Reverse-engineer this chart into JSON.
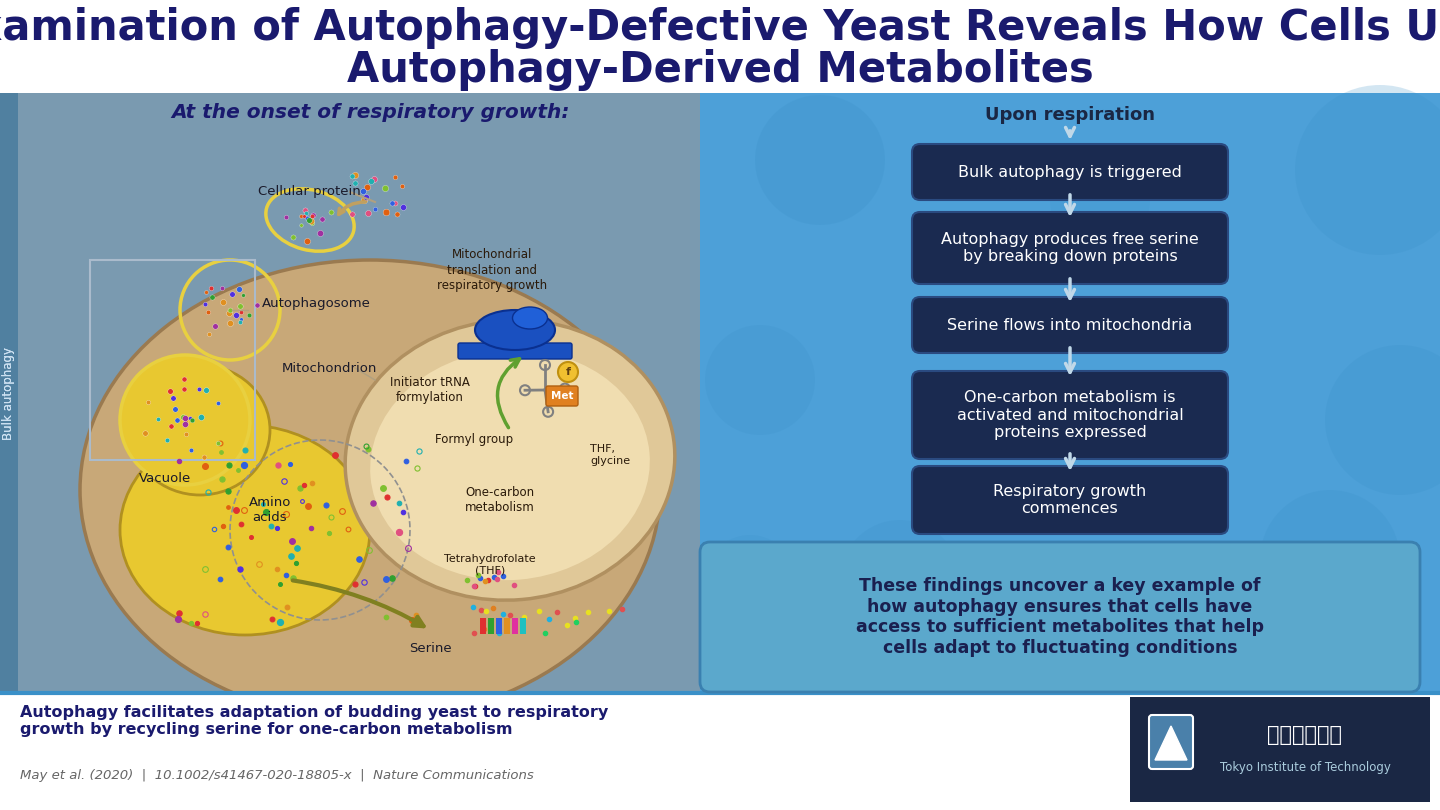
{
  "title_line1": "Examination of Autophagy-Defective Yeast Reveals How Cells Use",
  "title_line2": "Autophagy-Derived Metabolites",
  "title_color": "#1a1a6e",
  "title_fontsize": 30,
  "bg_color": "#ffffff",
  "left_panel_bg": "#7a9ab0",
  "left_panel_label": "At the onset of respiratory growth:",
  "left_panel_label_color": "#1a1a6e",
  "right_panel_bg": "#4da0d8",
  "right_panel_label": "Upon respiration",
  "flow_boxes": [
    "Bulk autophagy is triggered",
    "Autophagy produces free serine\nby breaking down proteins",
    "Serine flows into mitochondria",
    "One-carbon metabolism is\nactivated and mitochondrial\nproteins expressed",
    "Respiratory growth\ncommences"
  ],
  "flow_box_color": "#1a2a50",
  "flow_box_text_color": "#ffffff",
  "flow_arrow_color": "#c0d8e8",
  "summary_box_bg": "#5ba8cc",
  "summary_text": "These findings uncover a key example of\nhow autophagy ensures that cells have\naccess to sufficient metabolites that help\ncells adapt to fluctuating conditions",
  "summary_text_color": "#1a2050",
  "footer_bold": "Autophagy facilitates adaptation of budding yeast to respiratory\ngrowth by recycling serine for one-carbon metabolism",
  "footer_citation": "May et al. (2020)  |  10.1002/s41467-020-18805-x  |  Nature Communications",
  "footer_bold_color": "#1a1a6e",
  "footer_citation_color": "#666666",
  "titech_bg": "#1a2744",
  "cell_body_color": "#c8a878",
  "vacuole_color": "#e8c830",
  "mito_outer_color": "#e0c898",
  "mito_inner_color": "#f0ddb0",
  "autophagosome_color": "#e8d040",
  "blue_ribosome_color": "#1a50c0"
}
